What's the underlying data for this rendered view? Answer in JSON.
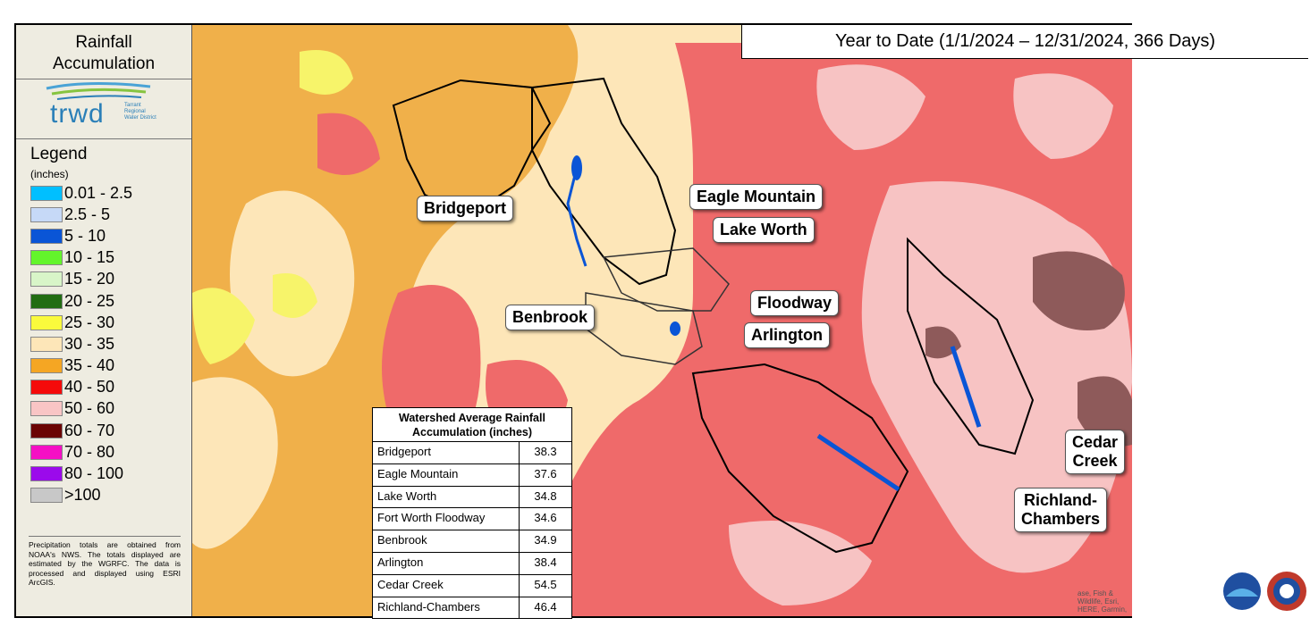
{
  "header": {
    "title": "Year to Date (1/1/2024 – 12/31/2024, 366 Days)"
  },
  "sidebar": {
    "title_line1": "Rainfall",
    "title_line2": "Accumulation",
    "logo": {
      "name": "trwd",
      "subtitle": "Tarrant Regional Water District"
    },
    "legend_title": "Legend",
    "legend_units": "(inches)",
    "legend": [
      {
        "label": "0.01 - 2.5",
        "color": "#00bfff"
      },
      {
        "label": "2.5 - 5",
        "color": "#c6d9f7"
      },
      {
        "label": "5 - 10",
        "color": "#0a55d6"
      },
      {
        "label": "10 - 15",
        "color": "#63f52b"
      },
      {
        "label": "15 - 20",
        "color": "#d8f5c8"
      },
      {
        "label": "20 - 25",
        "color": "#226d12"
      },
      {
        "label": "25 - 30",
        "color": "#fafa3c"
      },
      {
        "label": "30 - 35",
        "color": "#fde6b8"
      },
      {
        "label": "35 - 40",
        "color": "#f5a623"
      },
      {
        "label": "40 - 50",
        "color": "#f50a0a"
      },
      {
        "label": "50 - 60",
        "color": "#f9c5c5"
      },
      {
        "label": "60 - 70",
        "color": "#6b0303"
      },
      {
        "label": "70 - 80",
        "color": "#f50fc4"
      },
      {
        "label": "80 - 100",
        "color": "#9b0aeb"
      },
      {
        "label": ">100",
        "color": "#c8c8c8"
      }
    ],
    "note": "Precipitation totals are obtained from NOAA's NWS. The totals displayed are estimated by the WGRFC. The data is processed and displayed using ESRI ArcGIS."
  },
  "table": {
    "title_line1": "Watershed Average Rainfall",
    "title_line2": "Accumulation (inches)",
    "rows": [
      {
        "name": "Bridgeport",
        "value": "38.3"
      },
      {
        "name": "Eagle Mountain",
        "value": "37.6"
      },
      {
        "name": "Lake Worth",
        "value": "34.8"
      },
      {
        "name": "Fort Worth Floodway",
        "value": "34.6"
      },
      {
        "name": "Benbrook",
        "value": "34.9"
      },
      {
        "name": "Arlington",
        "value": "38.4"
      },
      {
        "name": "Cedar Creek",
        "value": "54.5"
      },
      {
        "name": "Richland-Chambers",
        "value": "46.4"
      }
    ]
  },
  "callouts": {
    "bridgeport": "Bridgeport",
    "eagle_mountain": "Eagle Mountain",
    "lake_worth": "Lake Worth",
    "floodway": "Floodway",
    "benbrook": "Benbrook",
    "arlington": "Arlington",
    "cedar_creek_1": "Cedar",
    "cedar_creek_2": "Creek",
    "richland_1": "Richland-",
    "richland_2": "Chambers"
  },
  "credit": "ase, Fish & Wildlife, Esri, HERE, Garmin,",
  "agency_logos": [
    "noaa-logo",
    "national-weather-service-logo"
  ]
}
